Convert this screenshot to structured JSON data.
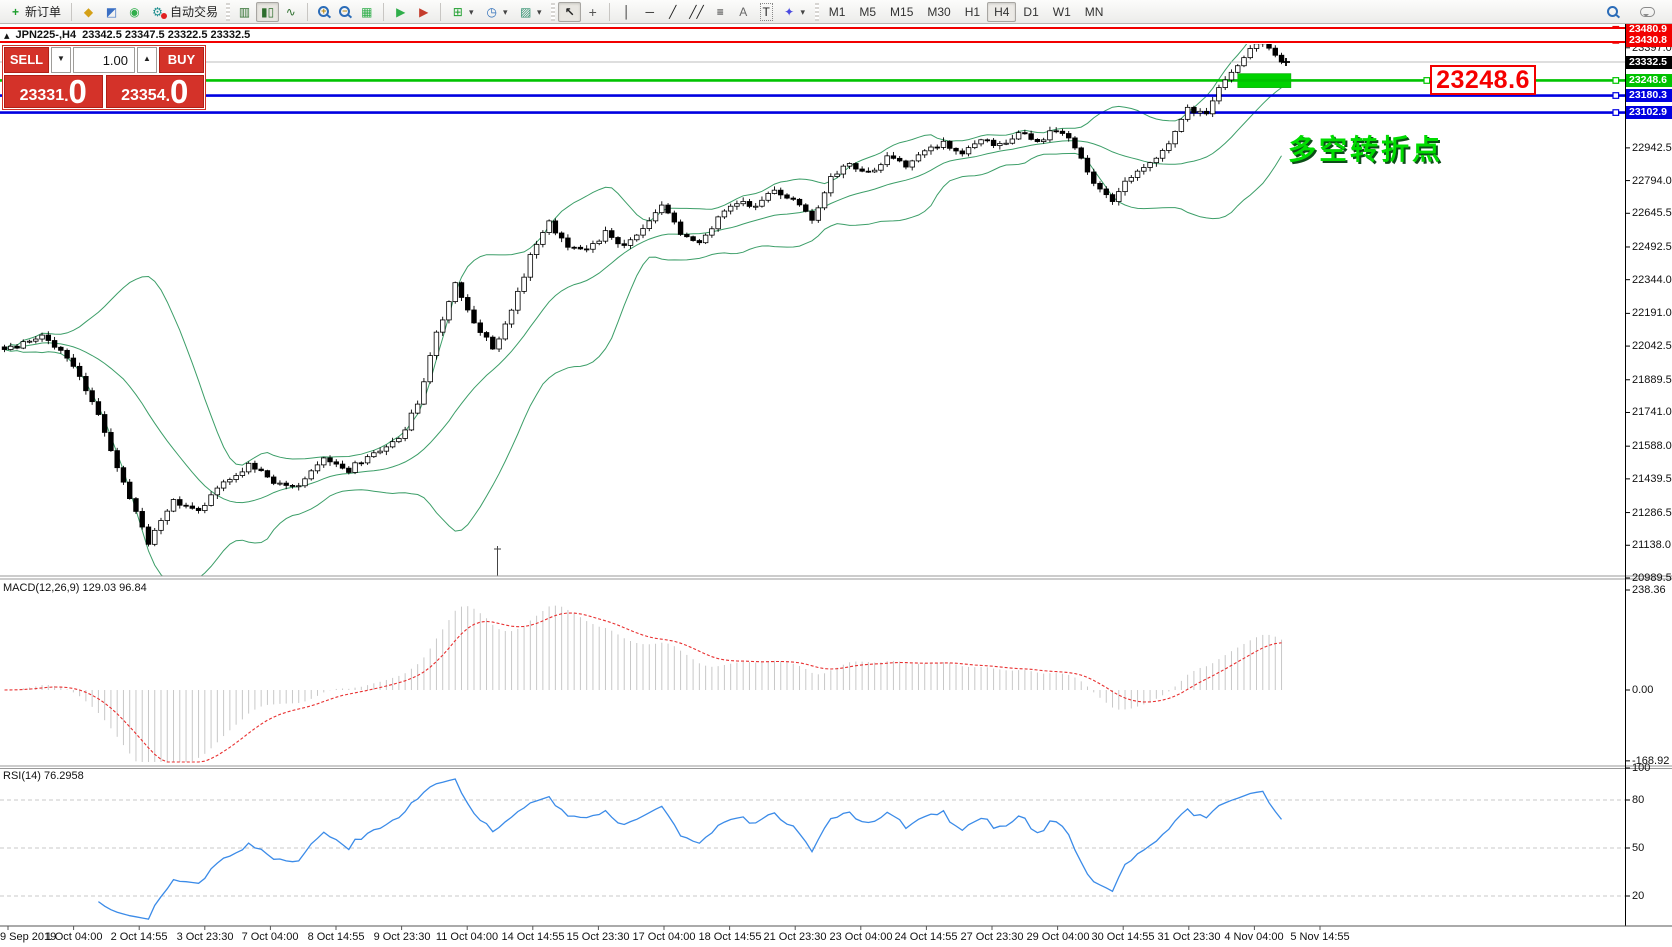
{
  "toolbar": {
    "new_order_label": "新订单",
    "autotrade_label": "自动交易",
    "timeframes": [
      "M1",
      "M5",
      "M15",
      "M30",
      "H1",
      "H4",
      "D1",
      "W1",
      "MN"
    ],
    "selected_timeframe": "H4",
    "icons": {
      "window_marker": "▴",
      "new_order_glyph": "+",
      "book": "◆",
      "market_watch": "◩",
      "signal": "◉",
      "autotrade": "⚙",
      "bar_chart": "▥",
      "candle_chart": "▮▯",
      "line_chart": "∿",
      "zoom_in_sign": "+",
      "zoom_out_sign": "−",
      "tile_windows": "▦",
      "auto_scroll": "▶",
      "chart_shift": "▶",
      "new_chart": "⊞",
      "period_clock": "◷",
      "indicators": "▨",
      "dropdown": "▾",
      "cursor": "↖",
      "crosshair": "+",
      "vertical_line": "│",
      "horizontal_line": "─",
      "trend_line": "╱",
      "channel": "╱╱",
      "fibonacci": "≡",
      "text_tool": "A",
      "text_label_tool": "T",
      "shapes": "✦",
      "spin_down": "▼",
      "spin_up": "▲"
    }
  },
  "window_title": {
    "symbol_period": "JPN225-,H4",
    "ohlc": "23342.5 23347.5 23322.5 23332.5"
  },
  "trade_panel": {
    "sell_label": "SELL",
    "buy_label": "BUY",
    "volume": "1.00",
    "sell_price_int": "23331",
    "sell_price_frac": "0",
    "buy_price_int": "23354",
    "buy_price_frac": "0",
    "dot": "."
  },
  "annotations": {
    "level_callout": "23248.6",
    "pivot_text": "多空转折点"
  },
  "main_pane": {
    "hlines": [
      {
        "label": "23480.9",
        "price": 23480.9,
        "color": "#f20000",
        "kind": "resistance"
      },
      {
        "label": "23430.8",
        "price": 23430.8,
        "color": "#f20000",
        "kind": "resistance"
      },
      {
        "label": "23332.5",
        "price": 23332.5,
        "color": "#000000",
        "kind": "current-price"
      },
      {
        "label": "23248.6",
        "price": 23248.6,
        "color": "#00c300",
        "kind": "pivot"
      },
      {
        "label": "23180.3",
        "price": 23180.3,
        "color": "#0000e0",
        "kind": "support"
      },
      {
        "label": "23102.9",
        "price": 23102.9,
        "color": "#0000e0",
        "kind": "support"
      }
    ],
    "axis_ticks": [
      "23397.0",
      "22942.5",
      "22794.0",
      "22645.5",
      "22492.5",
      "22344.0",
      "22191.0",
      "22042.5",
      "21889.5",
      "21741.0",
      "21588.0",
      "21439.5",
      "21286.5",
      "21138.0",
      "20989.5"
    ],
    "highlight_zone": {
      "from_idx": 197,
      "to_idx": 205.5,
      "price_top": 23280,
      "price_bottom": 23216,
      "color": "#00d200"
    }
  },
  "macd_pane": {
    "label": "MACD(12,26,9) 129.03 96.84",
    "ticks": [
      {
        "label": "238.36",
        "value": 238.36
      },
      {
        "label": "0.00",
        "value": 0
      },
      {
        "label": "-168.92",
        "value": -168.92
      }
    ]
  },
  "rsi_pane": {
    "label": "RSI(14) 76.2958",
    "ticks": [
      {
        "label": "100",
        "value": 100
      },
      {
        "label": "80",
        "value": 80
      },
      {
        "label": "50",
        "value": 50
      },
      {
        "label": "20",
        "value": 20
      }
    ],
    "levels": [
      80,
      50,
      20
    ]
  },
  "time_axis": [
    "9 Sep 2019",
    "1 Oct 04:00",
    "2 Oct 14:55",
    "3 Oct 23:30",
    "7 Oct 04:00",
    "8 Oct 14:55",
    "9 Oct 23:30",
    "11 Oct 04:00",
    "14 Oct 14:55",
    "15 Oct 23:30",
    "17 Oct 04:00",
    "18 Oct 14:55",
    "21 Oct 23:30",
    "23 Oct 04:00",
    "24 Oct 14:55",
    "27 Oct 23:30",
    "29 Oct 04:00",
    "30 Oct 14:55",
    "31 Oct 23:30",
    "4 Nov 04:00",
    "5 Nov 14:55"
  ],
  "chart_data": {
    "type": "candlestick",
    "symbol": "JPN225-",
    "period": "H4",
    "current_ohlc": {
      "open": 23342.5,
      "high": 23347.5,
      "low": 23322.5,
      "close": 23332.5
    },
    "price_range_visible": [
      20989.5,
      23500
    ],
    "candle_count": 205,
    "close_anchors": [
      [
        0,
        22020
      ],
      [
        6,
        22080
      ],
      [
        10,
        22000
      ],
      [
        14,
        21800
      ],
      [
        18,
        21480
      ],
      [
        23,
        21150
      ],
      [
        27,
        21340
      ],
      [
        31,
        21300
      ],
      [
        35,
        21420
      ],
      [
        39,
        21500
      ],
      [
        43,
        21430
      ],
      [
        47,
        21400
      ],
      [
        51,
        21530
      ],
      [
        55,
        21480
      ],
      [
        59,
        21560
      ],
      [
        63,
        21620
      ],
      [
        66,
        21780
      ],
      [
        69,
        22100
      ],
      [
        72,
        22320
      ],
      [
        75,
        22160
      ],
      [
        78,
        22030
      ],
      [
        81,
        22200
      ],
      [
        84,
        22450
      ],
      [
        87,
        22600
      ],
      [
        90,
        22500
      ],
      [
        93,
        22470
      ],
      [
        96,
        22560
      ],
      [
        99,
        22500
      ],
      [
        102,
        22570
      ],
      [
        105,
        22680
      ],
      [
        108,
        22560
      ],
      [
        111,
        22520
      ],
      [
        114,
        22620
      ],
      [
        117,
        22700
      ],
      [
        120,
        22680
      ],
      [
        123,
        22760
      ],
      [
        126,
        22700
      ],
      [
        129,
        22620
      ],
      [
        132,
        22800
      ],
      [
        135,
        22870
      ],
      [
        138,
        22830
      ],
      [
        141,
        22900
      ],
      [
        144,
        22860
      ],
      [
        147,
        22920
      ],
      [
        150,
        22960
      ],
      [
        153,
        22920
      ],
      [
        156,
        22990
      ],
      [
        159,
        22950
      ],
      [
        162,
        23010
      ],
      [
        165,
        22970
      ],
      [
        168,
        23030
      ],
      [
        171,
        22950
      ],
      [
        174,
        22780
      ],
      [
        177,
        22700
      ],
      [
        180,
        22820
      ],
      [
        183,
        22870
      ],
      [
        186,
        22960
      ],
      [
        189,
        23120
      ],
      [
        192,
        23100
      ],
      [
        195,
        23260
      ],
      [
        198,
        23360
      ],
      [
        201,
        23430
      ],
      [
        204,
        23332.5
      ]
    ],
    "indicators": {
      "bollinger": {
        "period": 20,
        "deviation": 2,
        "color": "#3c9e68"
      },
      "macd": {
        "fast": 12,
        "slow": 26,
        "signal": 9,
        "current_macd": 129.03,
        "current_signal": 96.84
      },
      "rsi": {
        "period": 14,
        "current": 76.2958
      }
    },
    "colors": {
      "candle_up": "#ffffff",
      "candle_down": "#000000",
      "candle_border": "#000000",
      "macd_hist": "#c8c8c8",
      "macd_signal": "#e83030",
      "rsi_line": "#3b8be8"
    }
  }
}
